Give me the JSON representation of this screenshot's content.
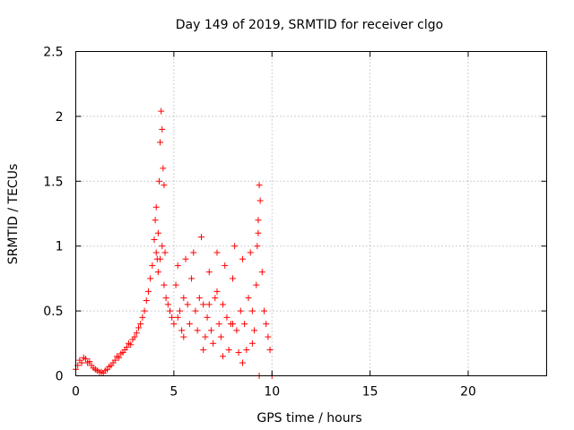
{
  "chart_data": {
    "type": "scatter",
    "title": "Day 149 of 2019, SRMTID for receiver clgo",
    "xlabel": "GPS time / hours",
    "ylabel": "SRMTID / TECUs",
    "xlim": [
      0,
      24
    ],
    "ylim": [
      0,
      2.5
    ],
    "xticks": [
      0,
      5,
      10,
      15,
      20
    ],
    "xtick_labels": [
      "0",
      "5",
      "10",
      "15",
      "20"
    ],
    "yticks": [
      0,
      0.5,
      1,
      1.5,
      2,
      2.5
    ],
    "ytick_labels": [
      "0",
      "0.5",
      "1",
      "1.5",
      "2",
      "2.5"
    ],
    "grid": true,
    "series": [
      {
        "name": "SRMTID",
        "color": "#ff0000",
        "marker": "plus",
        "x": [
          0.0,
          0.1,
          0.2,
          0.3,
          0.4,
          0.5,
          0.6,
          0.7,
          0.8,
          0.9,
          1.0,
          1.1,
          1.2,
          1.3,
          1.4,
          1.5,
          1.6,
          1.7,
          1.8,
          1.9,
          2.0,
          2.1,
          2.2,
          2.3,
          2.4,
          2.5,
          2.6,
          2.7,
          2.8,
          2.9,
          3.0,
          3.1,
          3.2,
          3.3,
          3.4,
          3.5,
          3.6,
          3.7,
          3.8,
          3.9,
          4.0,
          4.05,
          4.1,
          4.15,
          4.2,
          4.25,
          4.3,
          4.35,
          4.4,
          4.45,
          4.5,
          4.55,
          4.6,
          4.7,
          4.8,
          4.9,
          5.0,
          5.1,
          5.2,
          5.3,
          5.4,
          5.5,
          5.6,
          5.7,
          5.8,
          5.9,
          6.0,
          6.1,
          6.2,
          6.3,
          6.4,
          6.5,
          6.6,
          6.7,
          6.8,
          6.9,
          7.0,
          7.1,
          7.2,
          7.3,
          7.4,
          7.5,
          7.6,
          7.7,
          7.8,
          7.9,
          8.0,
          8.1,
          8.2,
          8.3,
          8.4,
          8.5,
          8.6,
          8.7,
          8.8,
          8.9,
          9.0,
          9.1,
          9.2,
          9.25,
          9.3,
          9.35,
          9.4,
          9.5,
          9.6,
          9.7,
          9.8,
          9.9,
          10.0,
          4.3,
          4.4,
          4.5,
          4.2,
          4.1,
          5.5,
          6.5,
          7.5,
          8.5,
          9.0,
          9.3,
          9.35,
          8.0,
          6.8,
          7.2,
          5.2
        ],
        "y": [
          0.05,
          0.08,
          0.12,
          0.1,
          0.14,
          0.13,
          0.1,
          0.11,
          0.08,
          0.06,
          0.05,
          0.04,
          0.03,
          0.03,
          0.02,
          0.04,
          0.05,
          0.07,
          0.08,
          0.1,
          0.12,
          0.15,
          0.14,
          0.17,
          0.18,
          0.2,
          0.22,
          0.25,
          0.24,
          0.28,
          0.3,
          0.33,
          0.37,
          0.4,
          0.45,
          0.5,
          0.58,
          0.65,
          0.75,
          0.85,
          1.05,
          1.2,
          1.3,
          0.9,
          1.1,
          1.5,
          1.8,
          2.04,
          1.9,
          1.6,
          1.47,
          0.95,
          0.6,
          0.55,
          0.5,
          0.45,
          0.4,
          0.7,
          0.85,
          0.5,
          0.35,
          0.6,
          0.9,
          0.55,
          0.4,
          0.75,
          0.95,
          0.5,
          0.35,
          0.6,
          1.07,
          0.55,
          0.3,
          0.45,
          0.8,
          0.35,
          0.25,
          0.6,
          0.95,
          0.4,
          0.3,
          0.55,
          0.85,
          0.45,
          0.2,
          0.4,
          0.75,
          1.0,
          0.35,
          0.18,
          0.5,
          0.9,
          0.4,
          0.2,
          0.6,
          0.95,
          0.5,
          0.35,
          0.7,
          1.0,
          1.2,
          1.47,
          1.35,
          0.8,
          0.5,
          0.4,
          0.3,
          0.2,
          0.0,
          0.9,
          1.0,
          0.7,
          0.8,
          0.95,
          0.3,
          0.2,
          0.15,
          0.1,
          0.25,
          1.1,
          0.0,
          0.4,
          0.55,
          0.65,
          0.45
        ]
      }
    ]
  }
}
